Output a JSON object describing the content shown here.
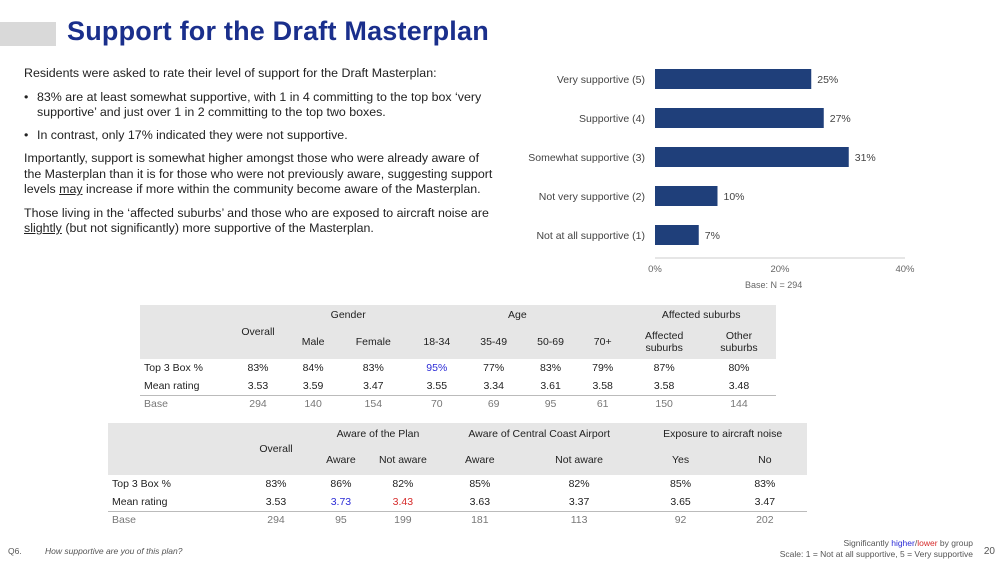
{
  "title": "Support for the Draft Masterplan",
  "intro": "Residents were asked to rate their level of support for the Draft Masterplan:",
  "bullets": [
    "83% are at least somewhat supportive, with 1 in 4 committing to the top box ‘very supportive’ and just over 1 in 2 committing to the top two boxes.",
    "In contrast, only 17% indicated they were not supportive."
  ],
  "para1": "Importantly, support is somewhat higher amongst those who were already aware of the Masterplan than it is for those who were not previously aware, suggesting support levels may increase if more within the community become aware of the Masterplan.",
  "para2_a": "Those living in the ‘affected suburbs’ and those who are exposed to aircraft noise are ",
  "para2_u": "slightly",
  "para2_b": " (but not significantly) more supportive of the Masterplan.",
  "chart_data": {
    "type": "bar",
    "orientation": "horizontal",
    "categories": [
      "Very supportive (5)",
      "Supportive (4)",
      "Somewhat supportive (3)",
      "Not very supportive (2)",
      "Not at all supportive (1)"
    ],
    "values": [
      25,
      27,
      31,
      10,
      7
    ],
    "value_labels": [
      "25%",
      "27%",
      "31%",
      "10%",
      "7%"
    ],
    "xlim": [
      0,
      40
    ],
    "xticks": [
      "0%",
      "20%",
      "40%"
    ],
    "bar_color": "#1f3f7a",
    "grid": false,
    "base_note": "Base: N = 294"
  },
  "table1": {
    "overall": "Overall",
    "groups": [
      "Gender",
      "Age",
      "Affected suburbs"
    ],
    "cols": [
      "Male",
      "Female",
      "18-34",
      "35-49",
      "50-69",
      "70+"
    ],
    "affected_cols": [
      [
        "Affected",
        "suburbs"
      ],
      [
        "Other",
        "suburbs"
      ]
    ],
    "rows": [
      {
        "label": "Top 3 Box %",
        "values": [
          "83%",
          "84%",
          "83%",
          "95%",
          "77%",
          "83%",
          "79%",
          "87%",
          "80%"
        ]
      },
      {
        "label": "Mean rating",
        "values": [
          "3.53",
          "3.59",
          "3.47",
          "3.55",
          "3.34",
          "3.61",
          "3.58",
          "3.58",
          "3.48"
        ]
      },
      {
        "label": "Base",
        "values": [
          "294",
          "140",
          "154",
          "70",
          "69",
          "95",
          "61",
          "150",
          "144"
        ]
      }
    ]
  },
  "table2": {
    "overall": "Overall",
    "groups": [
      "Aware of the Plan",
      "Aware of Central Coast Airport",
      "Exposure to aircraft noise"
    ],
    "cols": [
      "Aware",
      "Not aware",
      "Aware",
      "Not aware",
      "Yes",
      "No"
    ],
    "rows": [
      {
        "label": "Top 3 Box %",
        "values": [
          "83%",
          "86%",
          "82%",
          "85%",
          "82%",
          "85%",
          "83%"
        ]
      },
      {
        "label": "Mean rating",
        "values": [
          "3.53",
          "3.73",
          "3.43",
          "3.63",
          "3.37",
          "3.65",
          "3.47"
        ]
      },
      {
        "label": "Base",
        "values": [
          "294",
          "95",
          "199",
          "181",
          "113",
          "92",
          "202"
        ]
      }
    ]
  },
  "footer": {
    "q": "Q6.",
    "question": "How supportive are you of this plan?",
    "sig_prefix": "Significantly ",
    "sig_higher": "higher",
    "sig_slash": "/",
    "sig_lower": "lower",
    "sig_suffix": " by group",
    "scale": "Scale: 1 = Not at all supportive, 5 = Very supportive",
    "page": "20"
  },
  "colors": {
    "title": "#1a2f8c",
    "higher": "#2b2bd6",
    "lower": "#d62b2b",
    "bar": "#1f3f7a"
  }
}
